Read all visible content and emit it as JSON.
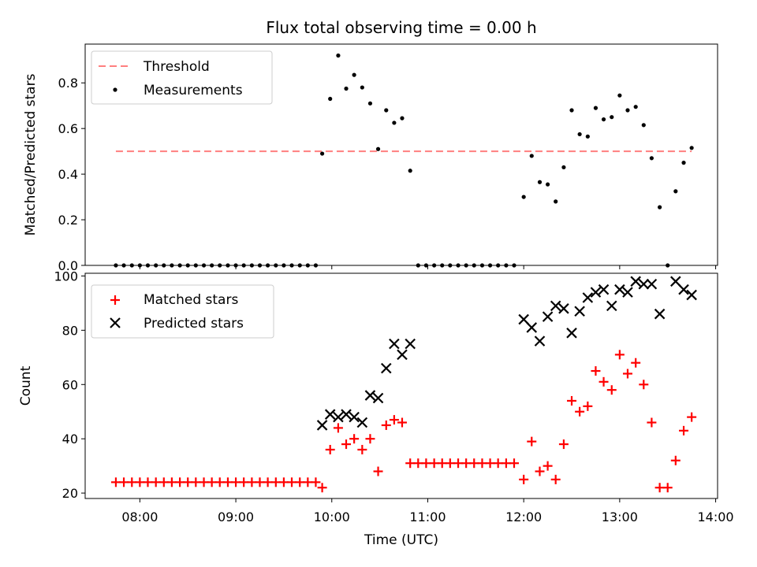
{
  "figure": {
    "title": "Flux total observing time = 0.00 h"
  },
  "chart_data": [
    {
      "type": "scatter",
      "title": "Flux total observing time = 0.00 h",
      "xlabel": "",
      "ylabel": "Matched/Predicted stars",
      "ylim": [
        0,
        0.97
      ],
      "yticks": [
        "0.0",
        "0.2",
        "0.4",
        "0.6",
        "0.8"
      ],
      "ytick_values": [
        0,
        0.2,
        0.4,
        0.6,
        0.8
      ],
      "legend": {
        "placement": "upper-left",
        "entries": [
          "Threshold",
          "Measurements"
        ]
      },
      "threshold": {
        "name": "Threshold",
        "value": 0.5,
        "x_start": 7.75,
        "x_end": 13.75,
        "color": "#ff7f7f",
        "style": "dashed"
      },
      "series": [
        {
          "name": "Measurements",
          "marker": "dot",
          "color": "#000000",
          "x": [
            7.75,
            7.833,
            7.917,
            8.0,
            8.083,
            8.167,
            8.25,
            8.333,
            8.417,
            8.5,
            8.583,
            8.667,
            8.75,
            8.833,
            8.917,
            9.0,
            9.083,
            9.167,
            9.25,
            9.333,
            9.417,
            9.5,
            9.583,
            9.667,
            9.75,
            9.833,
            9.9,
            9.983,
            10.067,
            10.15,
            10.233,
            10.317,
            10.4,
            10.483,
            10.567,
            10.65,
            10.733,
            10.817,
            10.9,
            10.983,
            11.067,
            11.15,
            11.233,
            11.317,
            11.4,
            11.483,
            11.567,
            11.65,
            11.733,
            11.817,
            11.9,
            12.0,
            12.083,
            12.167,
            12.25,
            12.333,
            12.417,
            12.5,
            12.583,
            12.667,
            12.75,
            12.833,
            12.917,
            13.0,
            13.083,
            13.167,
            13.25,
            13.333,
            13.417,
            13.5,
            13.583,
            13.667,
            13.75
          ],
          "y": [
            0,
            0,
            0,
            0,
            0,
            0,
            0,
            0,
            0,
            0,
            0,
            0,
            0,
            0,
            0,
            0,
            0,
            0,
            0,
            0,
            0,
            0,
            0,
            0,
            0,
            0,
            0.49,
            0.73,
            0.92,
            0.775,
            0.835,
            0.78,
            0.71,
            0.51,
            0.68,
            0.625,
            0.645,
            0.415,
            0,
            0,
            0,
            0,
            0,
            0,
            0,
            0,
            0,
            0,
            0,
            0,
            0,
            0.3,
            0.48,
            0.365,
            0.355,
            0.28,
            0.43,
            0.68,
            0.575,
            0.565,
            0.69,
            0.64,
            0.65,
            0.745,
            0.68,
            0.695,
            0.615,
            0.47,
            0.255,
            0,
            0.325,
            0.45,
            0.515
          ]
        }
      ]
    },
    {
      "type": "scatter",
      "title": "",
      "xlabel": "Time (UTC)",
      "ylabel": "Count",
      "xlim": [
        7.43,
        14.02
      ],
      "ylim": [
        18,
        101
      ],
      "xticks": [
        "08:00",
        "09:00",
        "10:00",
        "11:00",
        "12:00",
        "13:00",
        "14:00"
      ],
      "xtick_values": [
        8,
        9,
        10,
        11,
        12,
        13,
        14
      ],
      "yticks": [
        "20",
        "40",
        "60",
        "80",
        "100"
      ],
      "ytick_values": [
        20,
        40,
        60,
        80,
        100
      ],
      "legend": {
        "placement": "upper-left",
        "entries": [
          "Matched stars",
          "Predicted stars"
        ]
      },
      "series": [
        {
          "name": "Matched stars",
          "marker": "plus",
          "color": "#ff0000",
          "x": [
            7.75,
            7.833,
            7.917,
            8.0,
            8.083,
            8.167,
            8.25,
            8.333,
            8.417,
            8.5,
            8.583,
            8.667,
            8.75,
            8.833,
            8.917,
            9.0,
            9.083,
            9.167,
            9.25,
            9.333,
            9.417,
            9.5,
            9.583,
            9.667,
            9.75,
            9.833,
            9.9,
            9.983,
            10.067,
            10.15,
            10.233,
            10.317,
            10.4,
            10.483,
            10.567,
            10.65,
            10.733,
            10.817,
            10.9,
            10.983,
            11.067,
            11.15,
            11.233,
            11.317,
            11.4,
            11.483,
            11.567,
            11.65,
            11.733,
            11.817,
            11.9,
            12.0,
            12.083,
            12.167,
            12.25,
            12.333,
            12.417,
            12.5,
            12.583,
            12.667,
            12.75,
            12.833,
            12.917,
            13.0,
            13.083,
            13.167,
            13.25,
            13.333,
            13.417,
            13.5,
            13.583,
            13.667,
            13.75
          ],
          "y": [
            24,
            24,
            24,
            24,
            24,
            24,
            24,
            24,
            24,
            24,
            24,
            24,
            24,
            24,
            24,
            24,
            24,
            24,
            24,
            24,
            24,
            24,
            24,
            24,
            24,
            24,
            22,
            36,
            44,
            38,
            40,
            36,
            40,
            28,
            45,
            47,
            46,
            31,
            31,
            31,
            31,
            31,
            31,
            31,
            31,
            31,
            31,
            31,
            31,
            31,
            31,
            25,
            39,
            28,
            30,
            25,
            38,
            54,
            50,
            52,
            65,
            61,
            58,
            71,
            64,
            68,
            60,
            46,
            22,
            22,
            32,
            43,
            48
          ]
        },
        {
          "name": "Predicted stars",
          "marker": "x",
          "color": "#000000",
          "x": [
            9.9,
            9.983,
            10.067,
            10.15,
            10.233,
            10.317,
            10.4,
            10.483,
            10.567,
            10.65,
            10.733,
            10.817,
            12.0,
            12.083,
            12.167,
            12.25,
            12.333,
            12.417,
            12.5,
            12.583,
            12.667,
            12.75,
            12.833,
            12.917,
            13.0,
            13.083,
            13.167,
            13.25,
            13.333,
            13.417,
            13.583,
            13.667,
            13.75
          ],
          "y": [
            45,
            49,
            48,
            49,
            48,
            46,
            56,
            55,
            66,
            75,
            71,
            75,
            84,
            81,
            76,
            85,
            89,
            88,
            79,
            87,
            92,
            94,
            95,
            89,
            95,
            94,
            98,
            97,
            97,
            86,
            98,
            95,
            93
          ]
        }
      ]
    }
  ]
}
